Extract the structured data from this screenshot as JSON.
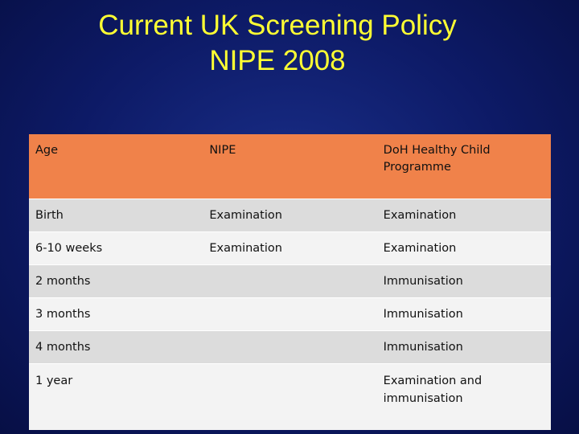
{
  "slide": {
    "title_line1": "Current UK Screening Policy",
    "title_line2": "NIPE 2008"
  },
  "table": {
    "headers": [
      "Age",
      "NIPE",
      "DoH Healthy Child Programme"
    ],
    "rows": [
      [
        "Birth",
        "Examination",
        "Examination"
      ],
      [
        "6-10 weeks",
        "Examination",
        "Examination"
      ],
      [
        "2 months",
        "",
        "Immunisation"
      ],
      [
        "3 months",
        "",
        "Immunisation"
      ],
      [
        "4 months",
        "",
        "Immunisation"
      ],
      [
        "1 year",
        "",
        "Examination and immunisation"
      ]
    ]
  },
  "colors": {
    "background": "#0d1a66",
    "title": "#ffff33",
    "header": "#f0824a",
    "row_odd": "#dcdcdc",
    "row_even": "#f3f3f3"
  }
}
